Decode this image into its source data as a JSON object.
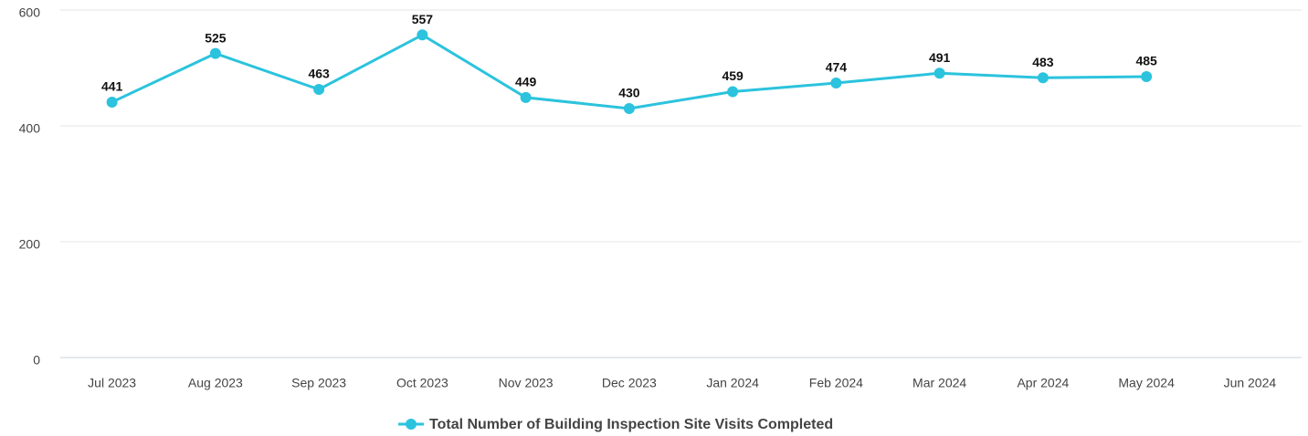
{
  "chart_data": {
    "type": "line",
    "categories": [
      "Jul 2023",
      "Aug 2023",
      "Sep 2023",
      "Oct 2023",
      "Nov 2023",
      "Dec 2023",
      "Jan 2024",
      "Feb 2024",
      "Mar 2024",
      "Apr 2024",
      "May 2024",
      "Jun 2024"
    ],
    "series": [
      {
        "name": "Total Number of Building Inspection Site Visits Completed",
        "color": "#2bc3dd",
        "values": [
          441,
          525,
          463,
          557,
          449,
          430,
          459,
          474,
          491,
          483,
          485,
          null
        ]
      }
    ],
    "ylim": [
      0,
      600
    ],
    "yticks": [
      0,
      200,
      400,
      600
    ],
    "grid": true,
    "legend": "bottom"
  }
}
